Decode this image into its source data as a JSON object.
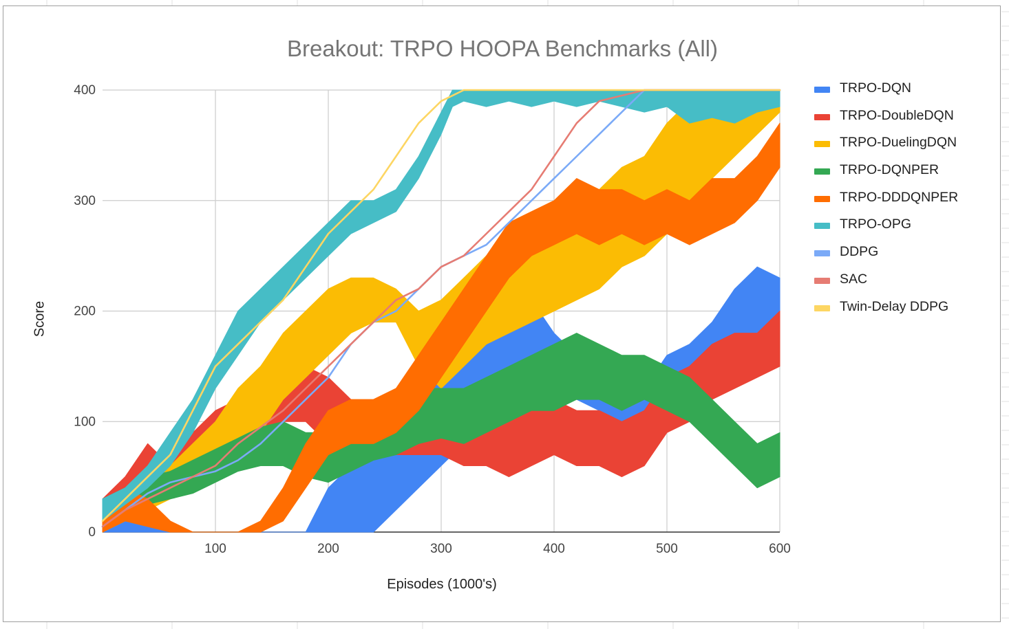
{
  "chart_data": {
    "type": "area",
    "title": "Breakout: TRPO HOOPA Benchmarks (All)",
    "xlabel": "Episodes (1000's)",
    "ylabel": "Score",
    "xlim": [
      0,
      600
    ],
    "ylim": [
      0,
      400
    ],
    "x_ticks": [
      100,
      200,
      300,
      400,
      500,
      600
    ],
    "y_ticks": [
      0,
      100,
      200,
      300,
      400
    ],
    "grid": true,
    "legend_position": "right",
    "series": [
      {
        "name": "TRPO-DQN",
        "color": "#4285f4",
        "band": true,
        "x": [
          0,
          20,
          40,
          60,
          80,
          100,
          120,
          140,
          160,
          180,
          200,
          220,
          240,
          260,
          280,
          300,
          320,
          340,
          360,
          380,
          400,
          420,
          440,
          460,
          480,
          500,
          520,
          540,
          560,
          580,
          600
        ],
        "low": [
          0,
          0,
          0,
          0,
          0,
          0,
          0,
          0,
          0,
          0,
          0,
          0,
          0,
          20,
          40,
          60,
          80,
          100,
          150,
          160,
          140,
          120,
          110,
          100,
          90,
          120,
          130,
          140,
          160,
          170,
          160
        ],
        "high": [
          30,
          20,
          10,
          5,
          0,
          0,
          0,
          0,
          0,
          0,
          40,
          60,
          90,
          110,
          130,
          150,
          160,
          180,
          220,
          210,
          180,
          160,
          150,
          140,
          130,
          160,
          170,
          190,
          220,
          240,
          230
        ]
      },
      {
        "name": "TRPO-DoubleDQN",
        "color": "#ea4335",
        "band": true,
        "x": [
          0,
          20,
          40,
          60,
          80,
          100,
          120,
          140,
          160,
          180,
          200,
          220,
          240,
          260,
          280,
          300,
          320,
          340,
          360,
          380,
          400,
          420,
          440,
          460,
          480,
          500,
          520,
          540,
          560,
          580,
          600
        ],
        "low": [
          10,
          30,
          40,
          50,
          60,
          70,
          80,
          90,
          100,
          100,
          80,
          80,
          70,
          70,
          70,
          70,
          60,
          60,
          50,
          60,
          70,
          60,
          60,
          50,
          60,
          90,
          100,
          120,
          130,
          140,
          150
        ],
        "high": [
          30,
          50,
          80,
          60,
          90,
          110,
          120,
          120,
          130,
          150,
          140,
          120,
          110,
          110,
          120,
          130,
          130,
          120,
          120,
          130,
          120,
          110,
          110,
          100,
          110,
          140,
          150,
          170,
          180,
          180,
          200
        ]
      },
      {
        "name": "TRPO-DuelingDQN",
        "color": "#fbbc04",
        "band": true,
        "x": [
          0,
          20,
          40,
          60,
          80,
          100,
          120,
          140,
          160,
          180,
          200,
          220,
          240,
          260,
          280,
          300,
          320,
          340,
          360,
          380,
          400,
          420,
          440,
          460,
          480,
          500,
          520,
          540,
          560,
          580,
          600
        ],
        "low": [
          0,
          10,
          20,
          30,
          40,
          50,
          70,
          90,
          120,
          140,
          160,
          180,
          190,
          190,
          150,
          130,
          150,
          170,
          180,
          190,
          200,
          210,
          220,
          240,
          250,
          270,
          300,
          320,
          340,
          360,
          380
        ],
        "high": [
          20,
          30,
          40,
          60,
          80,
          100,
          130,
          150,
          180,
          200,
          220,
          230,
          230,
          220,
          200,
          210,
          230,
          250,
          260,
          270,
          280,
          290,
          310,
          330,
          340,
          370,
          390,
          400,
          400,
          400,
          400
        ]
      },
      {
        "name": "TRPO-DQNPER",
        "color": "#34a853",
        "band": true,
        "x": [
          0,
          20,
          40,
          60,
          80,
          100,
          120,
          140,
          160,
          180,
          200,
          220,
          240,
          260,
          280,
          300,
          320,
          340,
          360,
          380,
          400,
          420,
          440,
          460,
          480,
          500,
          520,
          540,
          560,
          580,
          600
        ],
        "low": [
          10,
          20,
          25,
          30,
          35,
          45,
          55,
          60,
          60,
          50,
          45,
          55,
          65,
          70,
          80,
          85,
          80,
          90,
          100,
          110,
          110,
          120,
          120,
          110,
          120,
          110,
          100,
          80,
          60,
          40,
          50
        ],
        "high": [
          30,
          40,
          50,
          55,
          65,
          75,
          85,
          95,
          100,
          90,
          90,
          100,
          110,
          120,
          130,
          130,
          130,
          140,
          150,
          160,
          170,
          180,
          170,
          160,
          160,
          150,
          140,
          120,
          100,
          80,
          90
        ]
      },
      {
        "name": "TRPO-DDDQNPER",
        "color": "#ff6d01",
        "band": true,
        "x": [
          0,
          20,
          40,
          60,
          80,
          100,
          120,
          140,
          160,
          180,
          200,
          220,
          240,
          260,
          280,
          300,
          320,
          340,
          360,
          380,
          400,
          420,
          440,
          460,
          480,
          500,
          520,
          540,
          560,
          580,
          600
        ],
        "low": [
          0,
          10,
          5,
          0,
          0,
          0,
          0,
          0,
          10,
          40,
          70,
          80,
          80,
          90,
          110,
          140,
          170,
          200,
          230,
          250,
          260,
          270,
          260,
          270,
          260,
          270,
          260,
          270,
          280,
          300,
          330
        ],
        "high": [
          20,
          40,
          30,
          10,
          0,
          0,
          0,
          10,
          40,
          80,
          110,
          120,
          120,
          130,
          160,
          190,
          220,
          250,
          280,
          290,
          300,
          320,
          310,
          310,
          300,
          310,
          300,
          320,
          320,
          340,
          370
        ]
      },
      {
        "name": "TRPO-OPG",
        "color": "#46bdc6",
        "band": true,
        "x": [
          0,
          20,
          40,
          60,
          80,
          100,
          120,
          140,
          160,
          180,
          200,
          220,
          240,
          260,
          280,
          300,
          310,
          320,
          340,
          360,
          380,
          400,
          420,
          440,
          460,
          480,
          500,
          520,
          540,
          560,
          580,
          600
        ],
        "low": [
          10,
          25,
          40,
          60,
          90,
          130,
          160,
          190,
          210,
          230,
          250,
          270,
          280,
          290,
          320,
          360,
          385,
          390,
          385,
          390,
          385,
          390,
          385,
          390,
          385,
          380,
          385,
          370,
          375,
          370,
          380,
          385
        ],
        "high": [
          30,
          40,
          60,
          90,
          120,
          160,
          200,
          220,
          240,
          260,
          280,
          300,
          300,
          310,
          340,
          380,
          400,
          400,
          400,
          400,
          400,
          400,
          400,
          400,
          400,
          400,
          400,
          400,
          400,
          400,
          400,
          400
        ]
      },
      {
        "name": "DDPG",
        "color": "#7baaf7",
        "band": false,
        "x": [
          0,
          20,
          40,
          60,
          80,
          100,
          120,
          140,
          160,
          180,
          200,
          220,
          240,
          260,
          280,
          300,
          320,
          340,
          360,
          380,
          400,
          420,
          440,
          460,
          480,
          500,
          520,
          540,
          560,
          580,
          600
        ],
        "y": [
          5,
          20,
          35,
          45,
          50,
          55,
          65,
          80,
          100,
          120,
          140,
          170,
          190,
          200,
          220,
          240,
          250,
          260,
          280,
          300,
          320,
          340,
          360,
          380,
          400,
          400,
          400,
          400,
          400,
          400,
          400
        ]
      },
      {
        "name": "SAC",
        "color": "#e67c73",
        "band": false,
        "x": [
          0,
          20,
          40,
          60,
          80,
          100,
          120,
          140,
          160,
          180,
          200,
          220,
          240,
          260,
          280,
          300,
          320,
          340,
          360,
          380,
          400,
          420,
          440,
          460,
          480,
          500,
          520,
          540,
          560,
          580,
          600
        ],
        "y": [
          5,
          20,
          30,
          40,
          50,
          60,
          80,
          95,
          110,
          130,
          150,
          170,
          190,
          210,
          220,
          240,
          250,
          270,
          290,
          310,
          340,
          370,
          390,
          395,
          400,
          400,
          400,
          400,
          400,
          400,
          400
        ]
      },
      {
        "name": "Twin-Delay DDPG",
        "color": "#fdd663",
        "band": false,
        "x": [
          0,
          20,
          40,
          60,
          80,
          100,
          120,
          140,
          160,
          180,
          200,
          220,
          240,
          260,
          280,
          300,
          320,
          340,
          360,
          380,
          400,
          420,
          440,
          460,
          480,
          500,
          520,
          540,
          560,
          580,
          600
        ],
        "y": [
          10,
          30,
          50,
          70,
          110,
          150,
          170,
          190,
          210,
          240,
          270,
          290,
          310,
          340,
          370,
          390,
          400,
          400,
          400,
          400,
          400,
          400,
          400,
          400,
          400,
          400,
          400,
          400,
          400,
          400,
          400
        ]
      }
    ]
  }
}
